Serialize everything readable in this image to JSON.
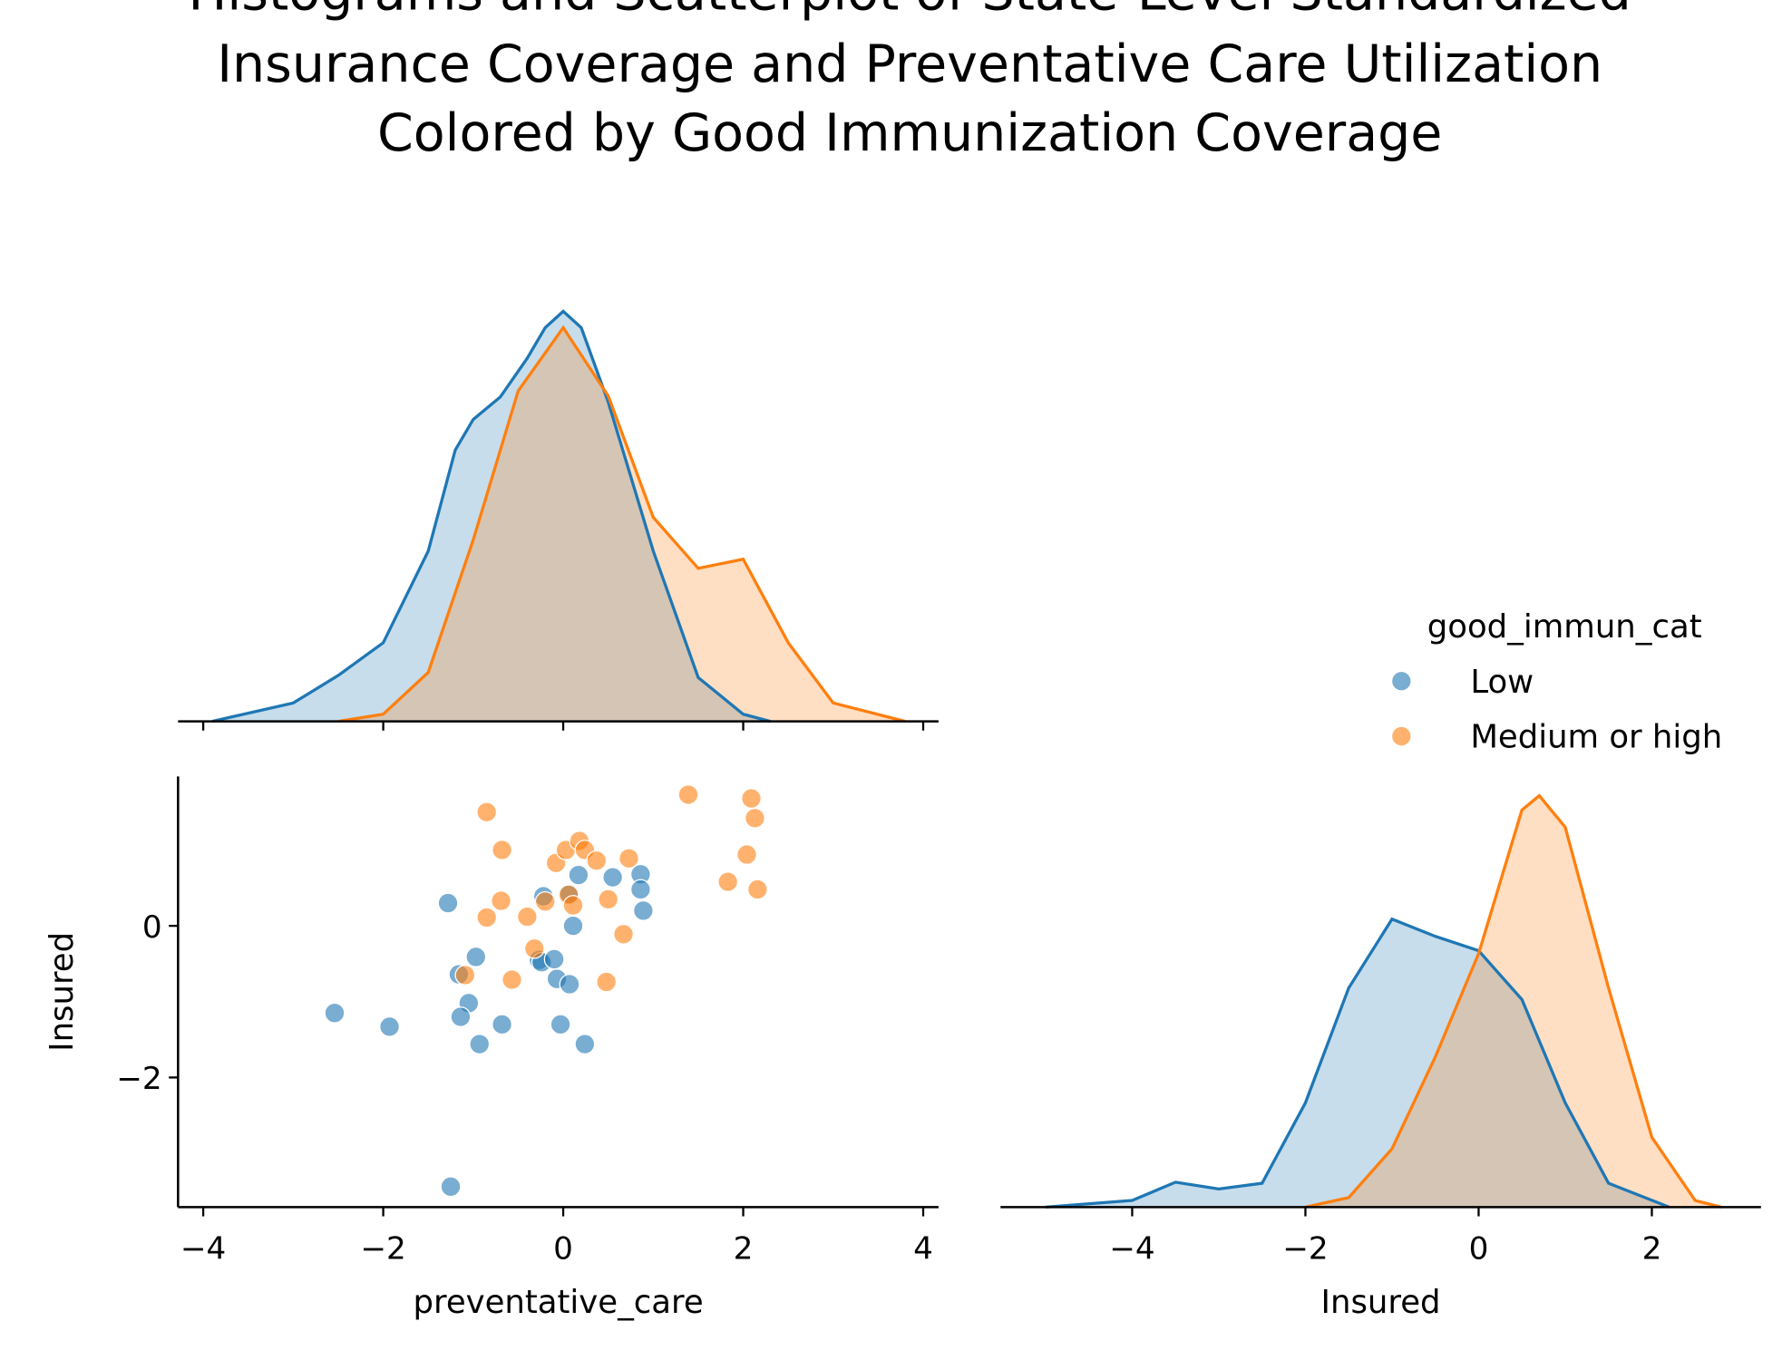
{
  "figure": {
    "title": [
      "Histograms and Scatterplot of State-Level Standardized",
      "Insurance Coverage and Preventative Care Utilization",
      "Colored by Good Immunization Coverage"
    ],
    "legend_title": "good_immun_cat"
  },
  "chart_data": [
    {
      "type": "kde",
      "xlim": [
        -4.28,
        4.17
      ],
      "ylim": [
        0,
        0.42
      ],
      "xticks": [
        {
          "value": -4,
          "label": "−4"
        },
        {
          "value": -2,
          "label": "−2"
        },
        0,
        2,
        4
      ],
      "series": [
        {
          "name": "Low",
          "color": "#1f77b4",
          "x": [
            -3.9,
            -3,
            -2.5,
            -2,
            -1.5,
            -1.2,
            -1,
            -0.7,
            -0.4,
            -0.2,
            0,
            0.2,
            0.5,
            1,
            1.5,
            2,
            2.3
          ],
          "values": [
            0,
            0.018,
            0.045,
            0.077,
            0.167,
            0.266,
            0.296,
            0.318,
            0.356,
            0.386,
            0.402,
            0.386,
            0.313,
            0.167,
            0.043,
            0.007,
            0
          ]
        },
        {
          "name": "Medium or high",
          "color": "#ff7f0e",
          "x": [
            -2.5,
            -2,
            -1.5,
            -1,
            -0.5,
            0,
            0.5,
            1,
            1.5,
            2,
            2.5,
            3,
            3.8
          ],
          "values": [
            0,
            0.007,
            0.048,
            0.178,
            0.324,
            0.386,
            0.319,
            0.2,
            0.15,
            0.159,
            0.077,
            0.018,
            0
          ]
        }
      ]
    },
    {
      "type": "scatter",
      "x_label": "preventative_care",
      "y_label": "Insured",
      "xlim": [
        -4.28,
        4.17
      ],
      "ylim": [
        -3.71,
        1.97
      ],
      "xticks": [
        {
          "value": -4,
          "label": "−4"
        },
        {
          "value": -2,
          "label": "−2"
        },
        0,
        2,
        4
      ],
      "yticks": [
        {
          "value": -2,
          "label": "−2"
        },
        0
      ],
      "series": [
        {
          "name": "Low",
          "color": "#1f77b4",
          "x": [
            -1.28,
            -2.54,
            -1.93,
            -1.25,
            -1.16,
            -0.97,
            -1.05,
            -1.14,
            -0.93,
            -0.68,
            -0.22,
            -0.27,
            -0.24,
            -0.1,
            -0.07,
            0.07,
            -0.03,
            0.24,
            0.11,
            0.07,
            0.17,
            0.55,
            0.86,
            0.86,
            0.89
          ],
          "values": [
            0.3,
            -1.15,
            -1.33,
            -3.44,
            -0.64,
            -0.41,
            -1.02,
            -1.2,
            -1.56,
            -1.3,
            0.39,
            -0.45,
            -0.48,
            -0.44,
            -0.7,
            -0.77,
            -1.3,
            -1.56,
            0,
            0.42,
            0.67,
            0.64,
            0.68,
            0.48,
            0.2
          ]
        },
        {
          "name": "Medium or high",
          "color": "#ff7f0e",
          "x": [
            -0.85,
            -0.68,
            -0.85,
            -0.69,
            -1.09,
            -0.57,
            -0.4,
            -0.32,
            -0.2,
            -0.08,
            0.03,
            0.06,
            0.11,
            0.18,
            0.24,
            0.37,
            0.5,
            0.48,
            0.67,
            0.73,
            1.39,
            1.83,
            2.04,
            2.09,
            2.13,
            2.16
          ],
          "values": [
            1.5,
            1,
            0.11,
            0.33,
            -0.65,
            -0.71,
            0.12,
            -0.3,
            0.32,
            0.83,
            1,
            0.41,
            0.27,
            1.12,
            1,
            0.86,
            0.35,
            -0.74,
            -0.11,
            0.89,
            1.73,
            0.58,
            0.94,
            1.68,
            1.42,
            0.48
          ]
        }
      ]
    },
    {
      "type": "kde",
      "x_label": "Insured",
      "xlim": [
        -5.52,
        3.26
      ],
      "ylim": [
        0,
        0.45
      ],
      "xticks": [
        {
          "value": -4,
          "label": "−4"
        },
        {
          "value": -2,
          "label": "−2"
        },
        0,
        2
      ],
      "series": [
        {
          "name": "Low",
          "color": "#1f77b4",
          "x": [
            -5,
            -4,
            -3.5,
            -3,
            -2.5,
            -2,
            -1.5,
            -1,
            -0.5,
            0,
            0.5,
            1,
            1.5,
            2.2
          ],
          "values": [
            0,
            0.007,
            0.026,
            0.019,
            0.025,
            0.109,
            0.229,
            0.301,
            0.283,
            0.268,
            0.217,
            0.109,
            0.025,
            0
          ]
        },
        {
          "name": "Medium or high",
          "color": "#ff7f0e",
          "x": [
            -2,
            -1.5,
            -1,
            -0.5,
            0,
            0.5,
            0.7,
            1,
            1.5,
            2,
            2.5,
            2.8
          ],
          "values": [
            0,
            0.01,
            0.061,
            0.157,
            0.265,
            0.415,
            0.43,
            0.397,
            0.229,
            0.073,
            0.007,
            0
          ]
        }
      ]
    }
  ]
}
